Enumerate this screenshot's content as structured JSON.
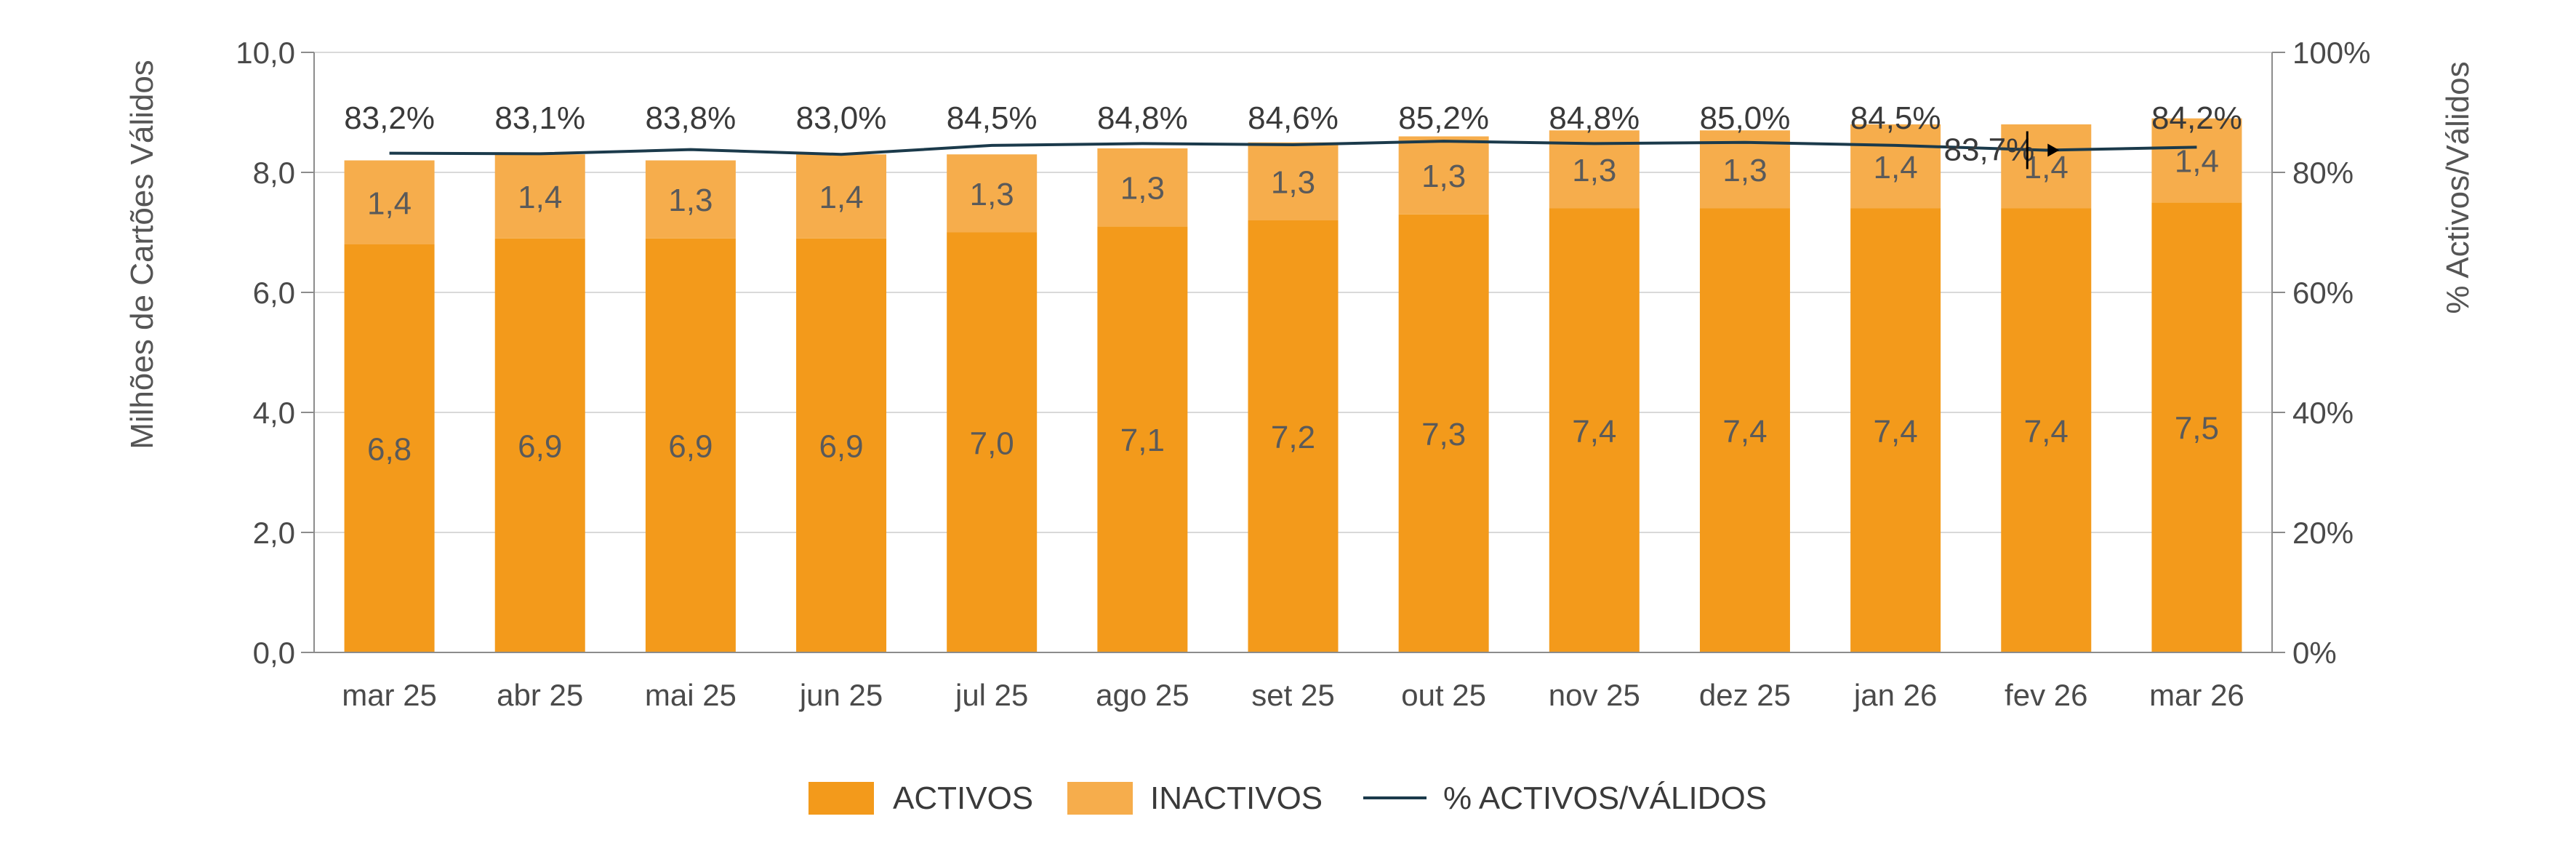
{
  "chart_data": {
    "type": "bar",
    "stacked": true,
    "categories": [
      "mar 25",
      "abr 25",
      "mai 25",
      "jun 25",
      "jul 25",
      "ago 25",
      "set 25",
      "out 25",
      "nov 25",
      "dez 25",
      "jan 26",
      "fev 26",
      "mar 26"
    ],
    "series": [
      {
        "name": "ACTIVOS",
        "axis": "left",
        "color": "#f39a1b",
        "values": [
          6.8,
          6.9,
          6.9,
          6.9,
          7.0,
          7.1,
          7.2,
          7.3,
          7.4,
          7.4,
          7.4,
          7.4,
          7.5
        ],
        "labels": [
          "6,8",
          "6,9",
          "6,9",
          "6,9",
          "7,0",
          "7,1",
          "7,2",
          "7,3",
          "7,4",
          "7,4",
          "7,4",
          "7,4",
          "7,5"
        ]
      },
      {
        "name": "INACTIVOS",
        "axis": "left",
        "color": "#f6ad4c",
        "values": [
          1.4,
          1.4,
          1.3,
          1.4,
          1.3,
          1.3,
          1.3,
          1.3,
          1.3,
          1.3,
          1.4,
          1.4,
          1.4
        ],
        "labels": [
          "1,4",
          "1,4",
          "1,3",
          "1,4",
          "1,3",
          "1,3",
          "1,3",
          "1,3",
          "1,3",
          "1,3",
          "1,4",
          "1,4",
          "1,4"
        ]
      },
      {
        "name": "% ACTIVOS/VÁLIDOS",
        "type": "line",
        "axis": "right",
        "color": "#1b3a4b",
        "values": [
          83.2,
          83.1,
          83.8,
          83.0,
          84.5,
          84.8,
          84.6,
          85.2,
          84.8,
          85.0,
          84.5,
          83.7,
          84.2
        ],
        "labels": [
          "83,2%",
          "83,1%",
          "83,8%",
          "83,0%",
          "84,5%",
          "84,8%",
          "84,6%",
          "85,2%",
          "84,8%",
          "85,0%",
          "84,5%",
          "83,7%",
          "84,2%"
        ]
      }
    ],
    "ylabel": "Milhões de Cartões Válidos",
    "y2label": "% Activos/Válidos",
    "ylim": [
      0,
      10
    ],
    "y2lim": [
      0,
      100
    ],
    "yticks": [
      "0,0",
      "2,0",
      "4,0",
      "6,0",
      "8,0",
      "10,0"
    ],
    "y2ticks": [
      "0%",
      "20%",
      "40%",
      "60%",
      "80%",
      "100%"
    ],
    "grid": true,
    "legend_position": "bottom-center"
  }
}
